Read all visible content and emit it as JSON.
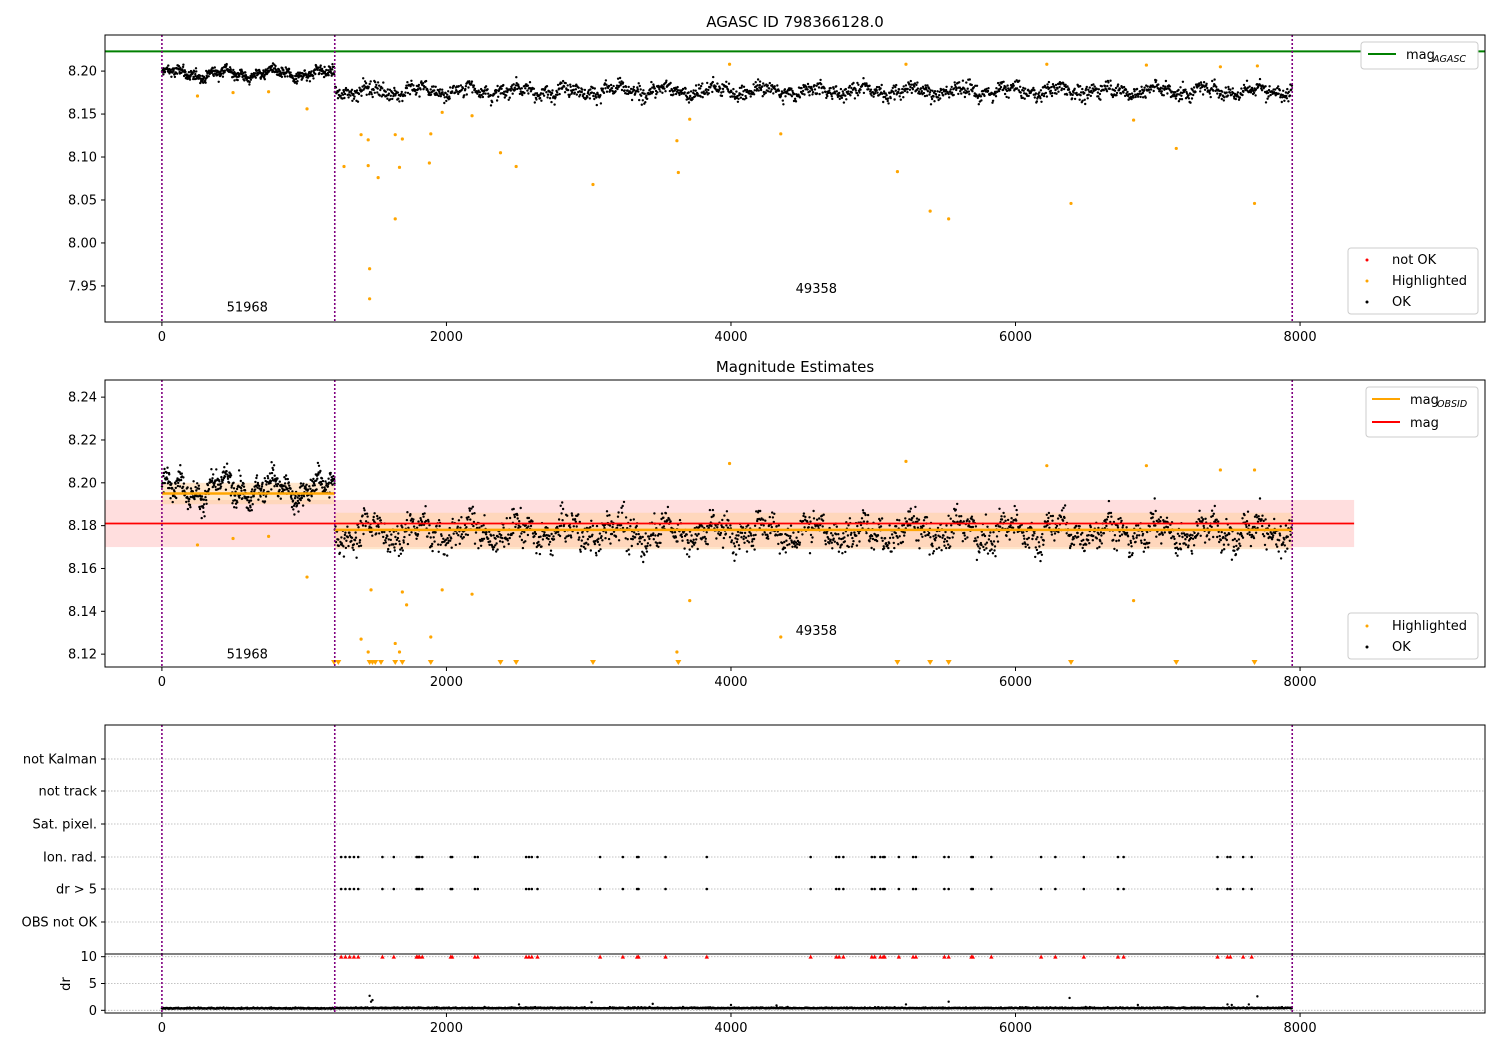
{
  "colors": {
    "ok": "#000000",
    "highlighted": "#ffa500",
    "not_ok": "#ff0000",
    "agasc_line": "#008000",
    "mag_line": "#ff0000",
    "obsid_line": "#ffa500",
    "obs_boundary": "#800080",
    "band_mag": "#ffb6b6",
    "band_obsid": "#ffd2a0"
  },
  "chart_data": [
    {
      "type": "scatter",
      "title": "AGASC ID 798366128.0",
      "xlim": [
        -400,
        9300
      ],
      "ylim": [
        7.908,
        8.242
      ],
      "x_ticks": [
        0,
        2000,
        4000,
        6000,
        8000
      ],
      "y_ticks": [
        7.95,
        8.0,
        8.05,
        8.1,
        8.15,
        8.2
      ],
      "y_tick_labels": [
        "7.95",
        "8.00",
        "8.05",
        "8.10",
        "8.15",
        "8.20"
      ],
      "agasc_mag": 8.223,
      "obs_boundaries": [
        0,
        1215,
        7945
      ],
      "annotations": [
        {
          "text": "51968",
          "x": 600,
          "y": 7.92
        },
        {
          "text": "49358",
          "x": 4600,
          "y": 7.942
        }
      ],
      "segments": [
        {
          "x": [
            0,
            1215
          ],
          "mean": 8.197,
          "spread": 0.01
        },
        {
          "x": [
            1215,
            7945
          ],
          "mean": 8.177,
          "spread": 0.013
        }
      ],
      "highlighted_points": [
        [
          250,
          8.171
        ],
        [
          500,
          8.175
        ],
        [
          750,
          8.176
        ],
        [
          1020,
          8.156
        ],
        [
          1280,
          8.089
        ],
        [
          1400,
          8.126
        ],
        [
          1450,
          8.12
        ],
        [
          1450,
          8.09
        ],
        [
          1460,
          7.97
        ],
        [
          1460,
          7.935
        ],
        [
          1520,
          8.076
        ],
        [
          1640,
          8.126
        ],
        [
          1640,
          8.028
        ],
        [
          1670,
          8.088
        ],
        [
          1690,
          8.121
        ],
        [
          1880,
          8.093
        ],
        [
          1890,
          8.127
        ],
        [
          1970,
          8.152
        ],
        [
          2180,
          8.148
        ],
        [
          2380,
          8.105
        ],
        [
          2490,
          8.089
        ],
        [
          3030,
          8.068
        ],
        [
          3620,
          8.119
        ],
        [
          3630,
          8.082
        ],
        [
          3710,
          8.144
        ],
        [
          3990,
          8.208
        ],
        [
          4350,
          8.127
        ],
        [
          5170,
          8.083
        ],
        [
          5230,
          8.208
        ],
        [
          5400,
          8.037
        ],
        [
          5530,
          8.028
        ],
        [
          6220,
          8.208
        ],
        [
          6390,
          8.046
        ],
        [
          6830,
          8.143
        ],
        [
          6920,
          8.207
        ],
        [
          7130,
          8.11
        ],
        [
          7440,
          8.205
        ],
        [
          7680,
          8.046
        ],
        [
          7700,
          8.206
        ]
      ],
      "legend": {
        "line": {
          "base": "mag",
          "sub": "AGASC"
        },
        "points": [
          "not OK",
          "Highlighted",
          "OK"
        ]
      }
    },
    {
      "type": "scatter",
      "title": "Magnitude Estimates",
      "xlim": [
        -400,
        9300
      ],
      "ylim": [
        8.114,
        8.248
      ],
      "x_ticks": [
        0,
        2000,
        4000,
        6000,
        8000
      ],
      "y_ticks": [
        8.12,
        8.14,
        8.16,
        8.18,
        8.2,
        8.22,
        8.24
      ],
      "y_tick_labels": [
        "8.12",
        "8.14",
        "8.16",
        "8.18",
        "8.20",
        "8.22",
        "8.24"
      ],
      "mag": 8.181,
      "mag_band": [
        8.17,
        8.192
      ],
      "mag_band_x": [
        -400,
        8380
      ],
      "obsid_mags": [
        {
          "x": [
            0,
            1215
          ],
          "mag": 8.195,
          "band": [
            8.19,
            8.2
          ]
        },
        {
          "x": [
            1215,
            7945
          ],
          "mag": 8.178,
          "band": [
            8.169,
            8.186
          ]
        }
      ],
      "obs_boundaries": [
        0,
        1215,
        7945
      ],
      "annotations": [
        {
          "text": "51968",
          "x": 600,
          "y": 8.118
        },
        {
          "text": "49358",
          "x": 4600,
          "y": 8.129
        }
      ],
      "segments": [
        {
          "x": [
            0,
            1215
          ],
          "mean": 8.197,
          "spread": 0.009
        },
        {
          "x": [
            1215,
            7945
          ],
          "mean": 8.177,
          "spread": 0.011
        }
      ],
      "highlighted_points": [
        [
          250,
          8.171
        ],
        [
          500,
          8.174
        ],
        [
          750,
          8.175
        ],
        [
          1020,
          8.156
        ],
        [
          1400,
          8.127
        ],
        [
          1450,
          8.121
        ],
        [
          1470,
          8.15
        ],
        [
          1640,
          8.125
        ],
        [
          1670,
          8.121
        ],
        [
          1690,
          8.149
        ],
        [
          1720,
          8.143
        ],
        [
          1890,
          8.128
        ],
        [
          1970,
          8.15
        ],
        [
          2180,
          8.148
        ],
        [
          3620,
          8.121
        ],
        [
          3710,
          8.145
        ],
        [
          3990,
          8.209
        ],
        [
          4350,
          8.128
        ],
        [
          5230,
          8.21
        ],
        [
          6220,
          8.208
        ],
        [
          6830,
          8.145
        ],
        [
          6920,
          8.208
        ],
        [
          7440,
          8.206
        ],
        [
          7680,
          8.206
        ]
      ],
      "clipped_low_x": [
        1210,
        1240,
        1460,
        1480,
        1500,
        1540,
        1640,
        1690,
        1890,
        2380,
        2490,
        3030,
        3630,
        5170,
        5400,
        5530,
        6390,
        7130,
        7680
      ],
      "legend": {
        "lines": [
          {
            "base": "mag",
            "sub": "OBSID"
          },
          {
            "base": "mag",
            "sub": ""
          }
        ],
        "points": [
          "Highlighted",
          "OK"
        ]
      }
    },
    {
      "type": "scatter",
      "xlim": [
        -400,
        9300
      ],
      "x_ticks": [
        0,
        2000,
        4000,
        6000,
        8000
      ],
      "categories": [
        "not Kalman",
        "not track",
        "Sat. pixel.",
        "Ion. rad.",
        "dr > 5",
        "OBS not OK"
      ],
      "obs_boundaries": [
        0,
        1215,
        7945
      ],
      "flag_x": [
        1260,
        1290,
        1320,
        1350,
        1380,
        1550,
        1630,
        1790,
        1800,
        1810,
        1830,
        2030,
        2040,
        2200,
        2220,
        2560,
        2580,
        2600,
        2640,
        3080,
        3240,
        3340,
        3350,
        3540,
        3830,
        4560,
        4740,
        4760,
        4790,
        4990,
        5010,
        5050,
        5070,
        5080,
        5180,
        5280,
        5300,
        5500,
        5530,
        5690,
        5700,
        5830,
        6180,
        6280,
        6480,
        6720,
        6760,
        7420,
        7490,
        7510,
        7600,
        7660
      ],
      "flag_rows": [
        "Ion. rad.",
        "dr > 5"
      ],
      "dr": {
        "ylabel": "dr",
        "ylim": [
          -0.5,
          10.5
        ],
        "y_ticks": [
          0,
          5,
          10
        ],
        "baseline_mean": 0.3,
        "baseline_spread": 0.25,
        "spikes": [
          [
            1460,
            2.7
          ],
          [
            1470,
            1.6
          ],
          [
            1480,
            1.9
          ],
          [
            2510,
            1.1
          ],
          [
            3020,
            1.5
          ],
          [
            3450,
            1.2
          ],
          [
            4000,
            1.0
          ],
          [
            4320,
            0.9
          ],
          [
            5230,
            1.1
          ],
          [
            5530,
            1.6
          ],
          [
            6380,
            2.3
          ],
          [
            6860,
            1.0
          ],
          [
            7490,
            1.1
          ],
          [
            7520,
            1.0
          ],
          [
            7640,
            1.1
          ],
          [
            7700,
            2.6
          ]
        ],
        "clipped_value": 10
      }
    }
  ]
}
